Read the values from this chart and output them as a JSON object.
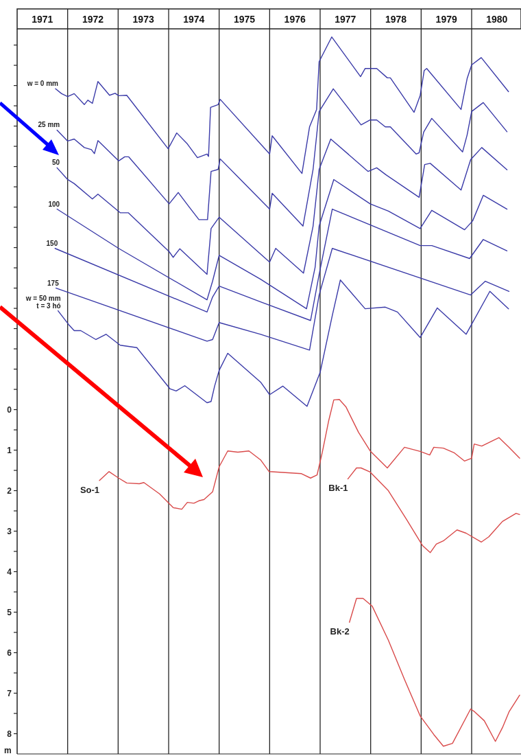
{
  "chart_data": {
    "type": "line",
    "ylabel": "m",
    "xlim": [
      1971,
      1980.95
    ],
    "ylim": [
      8.5,
      -9.4
    ],
    "xticks": [
      {
        "value": 1971.5,
        "label": "1971"
      },
      {
        "value": 1972.5,
        "label": "1972"
      },
      {
        "value": 1973.5,
        "label": "1973"
      },
      {
        "value": 1974.5,
        "label": "1974"
      },
      {
        "value": 1975.5,
        "label": "1975"
      },
      {
        "value": 1976.5,
        "label": "1976"
      },
      {
        "value": 1977.5,
        "label": "1977"
      },
      {
        "value": 1978.5,
        "label": "1978"
      },
      {
        "value": 1979.5,
        "label": "1979"
      },
      {
        "value": 1980.5,
        "label": "1980"
      }
    ],
    "yticks": [
      {
        "value": -9,
        "label": null
      },
      {
        "value": -8.5,
        "label": null
      },
      {
        "value": -8,
        "label": null
      },
      {
        "value": -7.5,
        "label": null
      },
      {
        "value": -7,
        "label": null
      },
      {
        "value": -6.5,
        "label": null
      },
      {
        "value": -6,
        "label": null
      },
      {
        "value": -5.5,
        "label": null
      },
      {
        "value": -5,
        "label": null
      },
      {
        "value": -4.5,
        "label": null
      },
      {
        "value": -4,
        "label": null
      },
      {
        "value": -3.5,
        "label": null
      },
      {
        "value": -3,
        "label": null
      },
      {
        "value": -2.5,
        "label": null
      },
      {
        "value": -2,
        "label": null
      },
      {
        "value": -1.5,
        "label": null
      },
      {
        "value": -1,
        "label": null
      },
      {
        "value": -0.5,
        "label": null
      },
      0,
      {
        "value": 0.5,
        "label": null
      },
      1,
      {
        "value": 1.5,
        "label": null
      },
      2,
      {
        "value": 2.5,
        "label": null
      },
      3,
      {
        "value": 3.5,
        "label": null
      },
      4,
      {
        "value": 4.5,
        "label": null
      },
      5,
      {
        "value": 5.5,
        "label": null
      },
      6,
      {
        "value": 6.5,
        "label": null
      },
      7,
      {
        "value": 7.5,
        "label": null
      },
      8
    ],
    "ref_lines": [
      {
        "axis": "x",
        "value": 1972,
        "color": "#222222"
      },
      {
        "axis": "x",
        "value": 1973,
        "color": "#222222"
      },
      {
        "axis": "x",
        "value": 1974,
        "color": "#222222"
      },
      {
        "axis": "x",
        "value": 1975,
        "color": "#222222"
      },
      {
        "axis": "x",
        "value": 1976,
        "color": "#222222"
      },
      {
        "axis": "x",
        "value": 1977,
        "color": "#222222"
      },
      {
        "axis": "x",
        "value": 1978,
        "color": "#222222"
      },
      {
        "axis": "x",
        "value": 1979,
        "color": "#222222"
      },
      {
        "axis": "x",
        "value": 1980,
        "color": "#222222"
      }
    ],
    "series": [
      {
        "name": "w = 0 mm",
        "color": "#3a3aa8",
        "x": [
          1971.76,
          1971.88,
          1972.0,
          1972.13,
          1972.33,
          1972.4,
          1972.49,
          1972.6,
          1972.83,
          1972.94,
          1973.01,
          1973.17,
          1973.99,
          1974.16,
          1974.37,
          1974.57,
          1974.76,
          1974.79,
          1974.83,
          1974.98,
          1975.02,
          1976.0,
          1976.05,
          1976.64,
          1976.79,
          1976.93,
          1976.98,
          1977.23,
          1977.8,
          1977.89,
          1978.12,
          1978.33,
          1978.39,
          1978.86,
          1978.98,
          1979.06,
          1979.11,
          1979.79,
          1979.91,
          1980.0,
          1980.19,
          1980.73
        ],
        "values": [
          -7.92,
          -7.8,
          -7.73,
          -7.8,
          -7.53,
          -7.64,
          -7.56,
          -8.1,
          -7.76,
          -7.81,
          -7.75,
          -7.76,
          -6.44,
          -6.83,
          -6.56,
          -6.22,
          -6.31,
          -6.25,
          -7.46,
          -7.53,
          -7.66,
          -6.31,
          -6.76,
          -5.83,
          -6.98,
          -7.41,
          -8.59,
          -9.2,
          -8.22,
          -8.42,
          -8.42,
          -8.19,
          -8.19,
          -7.34,
          -7.75,
          -8.37,
          -8.42,
          -7.41,
          -8.17,
          -8.51,
          -8.69,
          -7.85
        ]
      },
      {
        "name": "25 mm",
        "color": "#3a3aa8",
        "x": [
          1971.79,
          1972.0,
          1972.13,
          1972.33,
          1972.47,
          1972.53,
          1972.6,
          1973.01,
          1973.13,
          1973.21,
          1974.01,
          1974.19,
          1974.39,
          1974.6,
          1974.77,
          1974.84,
          1974.98,
          1975.02,
          1976.0,
          1976.05,
          1976.66,
          1976.86,
          1976.98,
          1977.26,
          1977.81,
          1977.99,
          1978.12,
          1978.29,
          1978.39,
          1978.9,
          1978.96,
          1979.05,
          1979.21,
          1979.82,
          1979.91,
          1980.0,
          1980.23,
          1980.7
        ],
        "values": [
          -6.9,
          -6.63,
          -6.68,
          -6.47,
          -6.42,
          -6.32,
          -6.64,
          -6.14,
          -6.24,
          -6.24,
          -5.08,
          -5.36,
          -5.03,
          -4.69,
          -4.69,
          -5.88,
          -5.93,
          -6.19,
          -4.95,
          -5.34,
          -4.53,
          -5.93,
          -7.36,
          -7.92,
          -7.03,
          -7.15,
          -7.15,
          -6.98,
          -6.98,
          -6.31,
          -6.34,
          -6.85,
          -7.19,
          -6.36,
          -6.78,
          -7.36,
          -7.58,
          -6.86
        ]
      },
      {
        "name": "50",
        "color": "#3a3aa8",
        "x": [
          1971.79,
          1972.0,
          1972.13,
          1972.49,
          1972.6,
          1973.04,
          1973.2,
          1974.01,
          1974.09,
          1974.22,
          1974.76,
          1974.84,
          1975.0,
          1976.0,
          1976.12,
          1976.67,
          1976.86,
          1976.98,
          1977.21,
          1977.95,
          1978.12,
          1978.3,
          1978.96,
          1979.07,
          1979.18,
          1979.79,
          1979.98,
          1980.2,
          1980.7
        ],
        "values": [
          -5.97,
          -5.68,
          -5.58,
          -5.2,
          -5.32,
          -4.86,
          -4.86,
          -3.9,
          -3.76,
          -3.97,
          -3.34,
          -4.47,
          -4.75,
          -3.64,
          -3.98,
          -3.37,
          -4.53,
          -5.93,
          -6.68,
          -5.88,
          -5.97,
          -5.8,
          -5.24,
          -6.05,
          -6.08,
          -5.42,
          -6.17,
          -6.47,
          -5.92
        ]
      },
      {
        "name": "100",
        "color": "#3a3aa8",
        "x": [
          1971.79,
          1973.01,
          1974.76,
          1974.87,
          1975.0,
          1975.82,
          1976.73,
          1976.9,
          1976.98,
          1977.27,
          1977.99,
          1978.35,
          1978.98,
          1979.21,
          1979.86,
          1980.02,
          1980.23,
          1980.7
        ],
        "values": [
          -4.95,
          -3.98,
          -2.71,
          -3.17,
          -3.81,
          -3.22,
          -2.49,
          -3.51,
          -4.53,
          -5.68,
          -5.08,
          -4.9,
          -4.47,
          -4.92,
          -4.44,
          -4.66,
          -5.29,
          -4.95
        ]
      },
      {
        "name": "150",
        "color": "#3a3aa8",
        "x": [
          1971.75,
          1974.76,
          1974.87,
          1975.0,
          1975.82,
          1976.81,
          1976.98,
          1977.24,
          1978.98,
          1979.21,
          1979.96,
          1980.23,
          1980.7
        ],
        "values": [
          -3.98,
          -2.41,
          -2.78,
          -3.05,
          -2.66,
          -2.2,
          -3.34,
          -4.95,
          -4.05,
          -4.05,
          -3.73,
          -4.2,
          -3.92
        ]
      },
      {
        "name": "175",
        "color": "#3a3aa8",
        "x": [
          1971.77,
          1974.76,
          1974.87,
          1975.0,
          1975.82,
          1976.79,
          1976.98,
          1977.24,
          1979.98,
          1980.27,
          1980.74
        ],
        "values": [
          -3.0,
          -1.69,
          -1.73,
          -2.15,
          -1.86,
          -1.47,
          -2.83,
          -3.98,
          -2.83,
          -3.17,
          -2.92
        ]
      },
      {
        "name": "w = 50 mm\nt = 3 hó",
        "color": "#3a3aa8",
        "x": [
          1971.81,
          1972.02,
          1972.13,
          1972.26,
          1972.56,
          1972.76,
          1973.04,
          1973.37,
          1974.03,
          1974.15,
          1974.32,
          1974.76,
          1974.84,
          1974.91,
          1975.0,
          1975.17,
          1975.82,
          1976.0,
          1976.26,
          1976.74,
          1977.0,
          1977.24,
          1977.4,
          1977.89,
          1978.29,
          1978.53,
          1978.98,
          1979.32,
          1979.89,
          1980.36,
          1980.73
        ],
        "values": [
          -2.44,
          -2.1,
          -1.95,
          -1.95,
          -1.73,
          -1.86,
          -1.59,
          -1.53,
          -0.51,
          -0.46,
          -0.59,
          -0.17,
          -0.2,
          -0.58,
          -0.97,
          -1.39,
          -0.68,
          -0.37,
          -0.58,
          -0.08,
          -0.92,
          -2.32,
          -3.2,
          -2.49,
          -2.53,
          -2.41,
          -1.78,
          -2.51,
          -1.86,
          -2.92,
          -2.49
        ]
      },
      {
        "name": "So-1",
        "color": "#d94a4a",
        "x": [
          1972.63,
          1972.82,
          1973.01,
          1973.17,
          1973.42,
          1973.51,
          1973.82,
          1974.09,
          1974.26,
          1974.37,
          1974.5,
          1974.6,
          1974.7,
          1974.87,
          1975.0,
          1975.17,
          1975.37,
          1975.59,
          1975.82,
          1975.99,
          1976.63,
          1976.81,
          1976.94,
          1977.04,
          1977.17,
          1977.27,
          1977.38,
          1977.51,
          1977.76,
          1977.99,
          1978.33,
          1978.67,
          1978.98,
          1979.17,
          1979.25,
          1979.44,
          1979.66,
          1979.86,
          1980.0,
          1980.05,
          1980.2,
          1980.54,
          1980.74,
          1980.95
        ],
        "values": [
          1.75,
          1.53,
          1.69,
          1.81,
          1.83,
          1.8,
          2.08,
          2.42,
          2.46,
          2.29,
          2.31,
          2.25,
          2.22,
          2.03,
          1.41,
          1.02,
          1.05,
          1.02,
          1.24,
          1.53,
          1.58,
          1.69,
          1.61,
          1.07,
          0.27,
          -0.24,
          -0.25,
          -0.07,
          0.56,
          1.02,
          1.44,
          0.93,
          1.03,
          1.12,
          0.93,
          0.95,
          1.07,
          1.27,
          1.2,
          0.85,
          0.9,
          0.69,
          0.93,
          1.2
        ]
      },
      {
        "name": "Bk-1",
        "color": "#d94a4a",
        "x": [
          1977.55,
          1977.72,
          1977.81,
          1977.99,
          1978.35,
          1978.71,
          1979.03,
          1979.18,
          1979.3,
          1979.44,
          1979.71,
          1979.89,
          1980.19,
          1980.34,
          1980.61,
          1980.88,
          1980.95
        ],
        "values": [
          1.71,
          1.44,
          1.44,
          1.54,
          2.0,
          2.71,
          3.36,
          3.53,
          3.32,
          3.24,
          2.97,
          3.05,
          3.27,
          3.14,
          2.76,
          2.56,
          2.59
        ]
      },
      {
        "name": "Bk-2",
        "color": "#d94a4a",
        "x": [
          1977.58,
          1977.72,
          1977.85,
          1978.03,
          1978.35,
          1978.67,
          1978.98,
          1979.25,
          1979.44,
          1979.62,
          1979.98,
          1980.06,
          1980.25,
          1980.47,
          1980.61,
          1980.74,
          1980.95
        ],
        "values": [
          5.25,
          4.66,
          4.66,
          4.85,
          5.69,
          6.66,
          7.56,
          8.02,
          8.31,
          8.24,
          7.39,
          7.46,
          7.68,
          8.19,
          7.85,
          7.46,
          7.05
        ]
      }
    ]
  }
}
